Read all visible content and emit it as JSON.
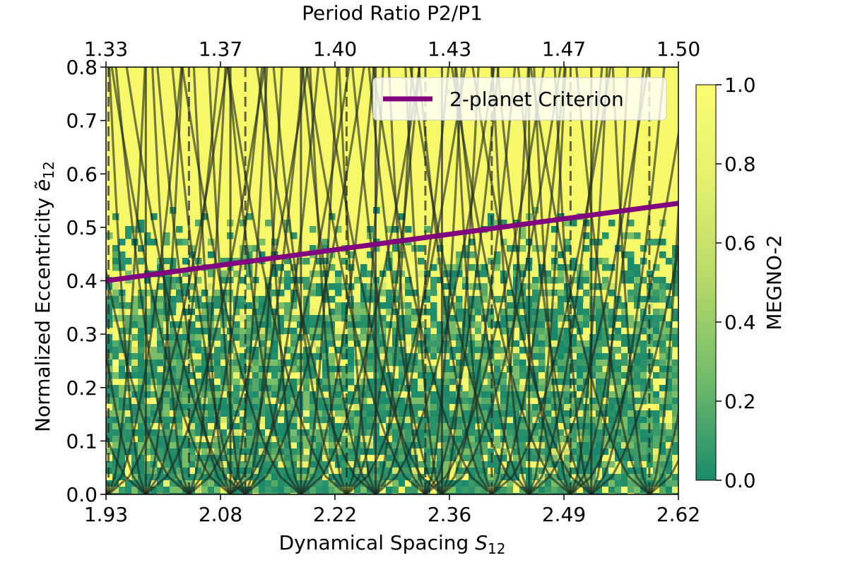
{
  "chart_data": {
    "type": "heatmap",
    "title": "",
    "xlabel": "Dynamical Spacing",
    "xlabel_symbol": "S",
    "xlabel_sub": "12",
    "ylabel": "Normalized Eccentricity",
    "ylabel_symbol": "ẽ",
    "ylabel_sub": "12",
    "top_xlabel": "Period Ratio P2/P1",
    "xlim": [
      1.93,
      2.62
    ],
    "ylim": [
      0.0,
      0.8
    ],
    "x_ticks": [
      "1.93",
      "2.08",
      "2.22",
      "2.36",
      "2.49",
      "2.62"
    ],
    "y_ticks": [
      "0.0",
      "0.1",
      "0.2",
      "0.3",
      "0.4",
      "0.5",
      "0.6",
      "0.7",
      "0.8"
    ],
    "top_ticks": [
      "1.33",
      "1.37",
      "1.40",
      "1.43",
      "1.47",
      "1.50"
    ],
    "colorbar": {
      "label": "MEGNO-2",
      "range": [
        0.0,
        1.0
      ],
      "ticks": [
        "0.0",
        "0.2",
        "0.4",
        "0.6",
        "0.8",
        "1.0"
      ],
      "colormap": [
        "#1b8a6b",
        "#6fba6a",
        "#b5d86a",
        "#e3ef6e",
        "#fbfd73"
      ]
    },
    "series": [
      {
        "name": "2-planet Criterion",
        "color": "#800080",
        "x": [
          1.93,
          2.62
        ],
        "y": [
          0.4,
          0.545
        ]
      }
    ],
    "resonance_centers": [
      1.933,
      1.978,
      2.03,
      2.08,
      2.098,
      2.165,
      2.22,
      2.255,
      2.315,
      2.335,
      2.395,
      2.44,
      2.49,
      2.515,
      2.585
    ],
    "legend": {
      "position": "top-right"
    },
    "grid": false
  }
}
